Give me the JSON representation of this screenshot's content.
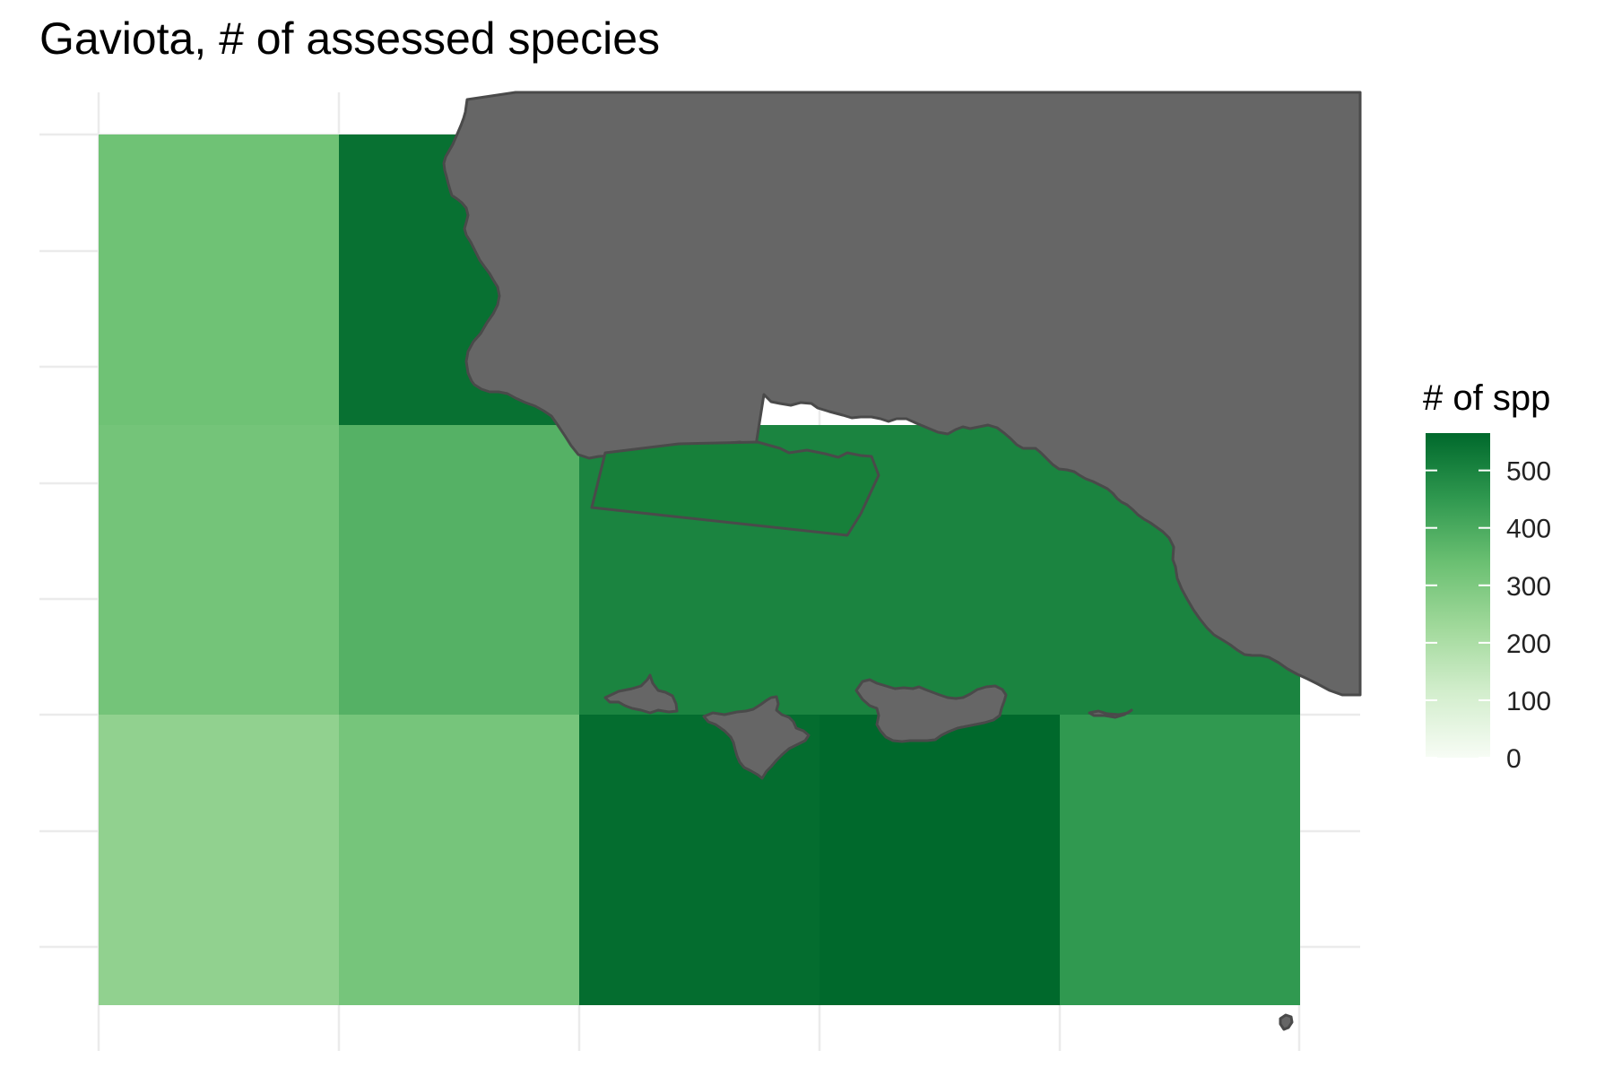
{
  "title": "Gaviota, # of assessed species",
  "colors": {
    "land": "#666666",
    "coast_outline": "#4a4a4a",
    "grid": "#ebebeb",
    "scale_low": "#f7fcf5",
    "scale_high": "#00692c"
  },
  "legend": {
    "title": "# of spp",
    "ticks": [
      "0",
      "100",
      "200",
      "300",
      "400",
      "500"
    ],
    "range": [
      0,
      565
    ]
  },
  "chart_data": {
    "type": "heatmap",
    "value_name": "# of spp",
    "value_range": [
      0,
      565
    ],
    "grid_columns": 5,
    "cells": [
      {
        "row": 0,
        "col": 0,
        "value": 330
      },
      {
        "row": 0,
        "col": 1,
        "value": 545
      },
      {
        "row": 1,
        "col": 0,
        "value": 320
      },
      {
        "row": 1,
        "col": 1,
        "value": 380
      },
      {
        "row": 1,
        "col": 2,
        "value": 500
      },
      {
        "row": 1,
        "col": 3,
        "value": 500
      },
      {
        "row": 1,
        "col": 4,
        "value": 500
      },
      {
        "row": 2,
        "col": 0,
        "value": 260
      },
      {
        "row": 2,
        "col": 1,
        "value": 315
      },
      {
        "row": 2,
        "col": 2,
        "value": 555
      },
      {
        "row": 2,
        "col": 3,
        "value": 565
      },
      {
        "row": 2,
        "col": 4,
        "value": 450
      }
    ],
    "grid": true,
    "legend_position": "right"
  }
}
